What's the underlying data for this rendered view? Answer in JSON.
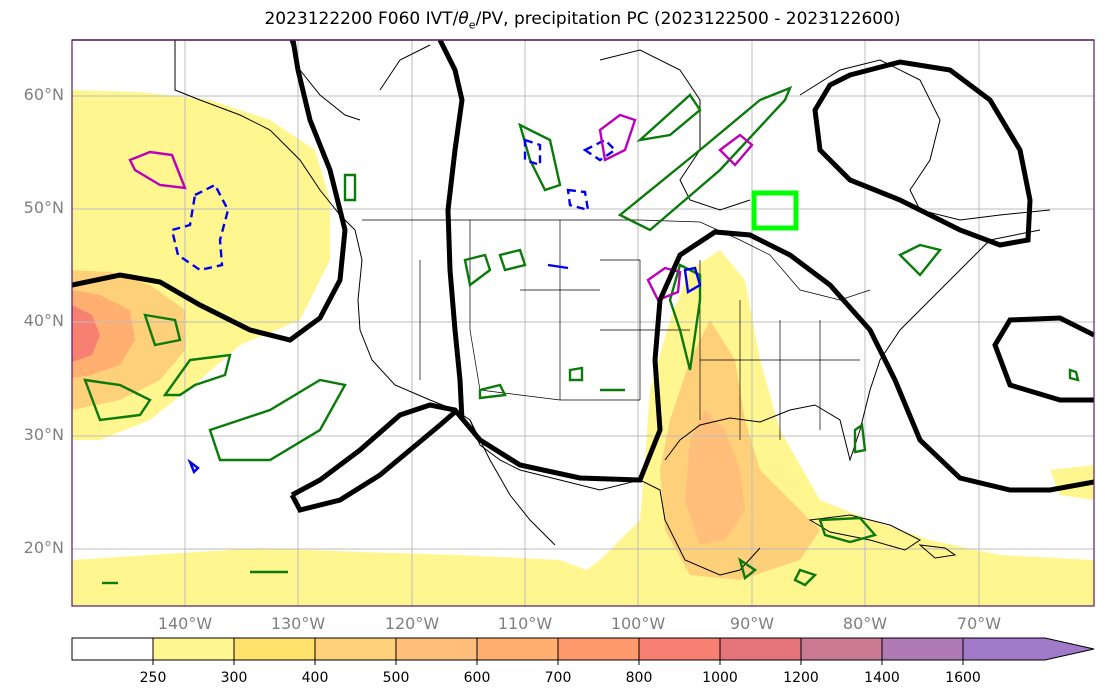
{
  "title_parts": {
    "prefix": "2023122200 F060 IVT/",
    "theta": "θ",
    "theta_sub": "e",
    "suffix": "/PV, precipitation PC (2023122500 - 2023122600)"
  },
  "colors": {
    "frame": "#5a1a6a",
    "land": "#ffffff",
    "black_contour": "#000000",
    "green_contour": "#0a7a0a",
    "blue_contour": "#0000ee",
    "magenta_contour": "#bb00bb",
    "highlight_box": "#00ff00"
  },
  "lat_labels": [
    "60°N",
    "50°N",
    "40°N",
    "30°N",
    "20°N"
  ],
  "lon_labels": [
    "140°W",
    "130°W",
    "120°W",
    "110°W",
    "100°W",
    "90°W",
    "80°W",
    "70°W"
  ],
  "colorbar": {
    "ticks": [
      "250",
      "300",
      "400",
      "500",
      "600",
      "700",
      "800",
      "1000",
      "1200",
      "1400",
      "1600"
    ],
    "colors": [
      "#ffffff",
      "#fff68f",
      "#ffe16b",
      "#ffd07a",
      "#ffbf7a",
      "#ffb070",
      "#ff9a6c",
      "#f88072",
      "#e5757a",
      "#cb7a94",
      "#b07ab6",
      "#a07ac8"
    ]
  }
}
